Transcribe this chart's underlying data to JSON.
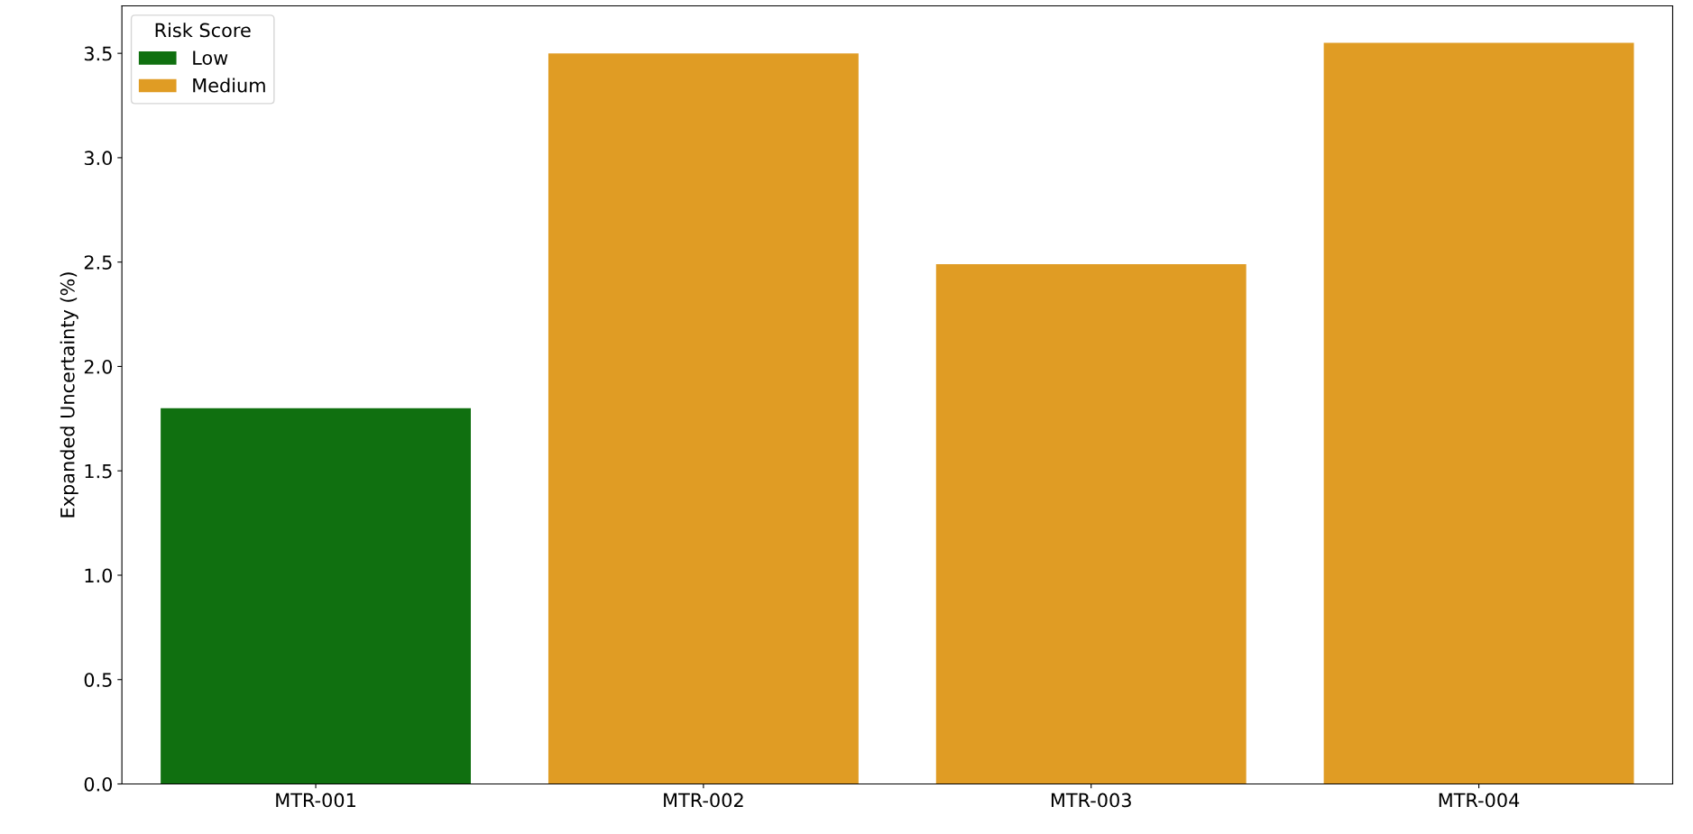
{
  "chart_data": {
    "type": "bar",
    "ylabel": "Expanded Uncertainty (%)",
    "legend_title": "Risk Score",
    "categories": [
      "MTR-001",
      "MTR-002",
      "MTR-003",
      "MTR-004"
    ],
    "series": [
      {
        "name": "Low",
        "color": "#107010",
        "values": [
          1.8,
          null,
          null,
          null
        ]
      },
      {
        "name": "Medium",
        "color": "#e09c24",
        "values": [
          null,
          3.5,
          2.49,
          3.55
        ]
      }
    ],
    "ylim": [
      0,
      3.7275
    ],
    "yticks": [
      {
        "value": 0,
        "label": "0.0"
      },
      {
        "value": 0.5,
        "label": "0.5"
      },
      {
        "value": 1,
        "label": "1.0"
      },
      {
        "value": 1.5,
        "label": "1.5"
      },
      {
        "value": 2,
        "label": "2.0"
      },
      {
        "value": 2.5,
        "label": "2.5"
      },
      {
        "value": 3,
        "label": "3.0"
      },
      {
        "value": 3.5,
        "label": "3.5"
      }
    ],
    "grid": false,
    "legend": "top left"
  }
}
